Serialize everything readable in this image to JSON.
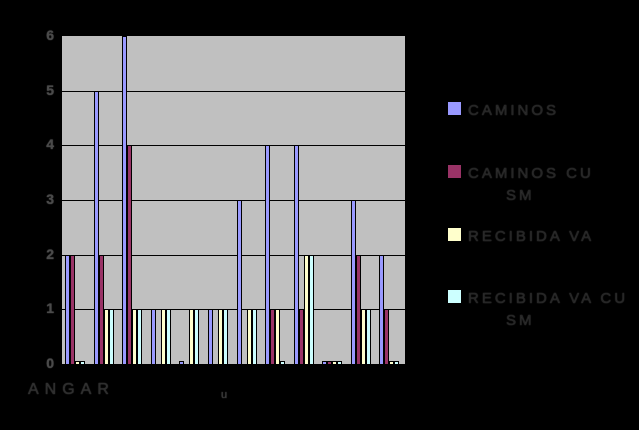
{
  "background_color": "#000000",
  "chart_data": {
    "type": "bar",
    "title": "",
    "xlabel": "",
    "ylabel": "",
    "ylim": [
      0,
      6
    ],
    "yticks": [
      0,
      1,
      2,
      3,
      4,
      5,
      6
    ],
    "grid": true,
    "legend_position": "right",
    "plot_bg_color": "#C0C0C0",
    "categories": [
      "",
      "",
      "",
      "",
      "",
      "",
      "",
      "",
      "",
      "",
      "",
      ""
    ],
    "series": [
      {
        "name": "CAMINOS",
        "color": "#9999FF",
        "values": [
          2,
          5,
          6,
          1,
          0.05,
          1,
          3,
          4,
          4,
          0.05,
          3,
          2
        ]
      },
      {
        "name": "CAMINOS CU SM",
        "color": "#993366",
        "values": [
          2,
          2,
          4,
          0,
          0,
          0,
          0,
          1,
          1,
          0.05,
          2,
          1
        ]
      },
      {
        "name": "RECIBIDA VA",
        "color": "#FFFFCC",
        "values": [
          0.05,
          1,
          1,
          1,
          1,
          1,
          1,
          1,
          2,
          0.05,
          1,
          0.05
        ]
      },
      {
        "name": "RECIBIDA VA CU SM",
        "color": "#CCFFFF",
        "values": [
          0.05,
          1,
          1,
          1,
          1,
          1,
          1,
          0.05,
          2,
          0.05,
          1,
          0.05
        ]
      }
    ]
  },
  "y_axis": {
    "tick_labels": [
      "6",
      "5",
      "4",
      "3",
      "2",
      "1",
      "0"
    ]
  },
  "x_axis": {
    "visible_label": "ANGAR",
    "visible_fragment": "u"
  },
  "legend": {
    "entries": [
      {
        "swatch_color": "#9999FF",
        "lines": [
          "CAMINOS"
        ]
      },
      {
        "swatch_color": "#993366",
        "lines": [
          "CAMINOS CU",
          "SM"
        ]
      },
      {
        "swatch_color": "#FFFFCC",
        "lines": [
          "RECIBIDA VA"
        ]
      },
      {
        "swatch_color": "#CCFFFF",
        "lines": [
          "RECIBIDA VA CU",
          "SM"
        ]
      }
    ]
  }
}
